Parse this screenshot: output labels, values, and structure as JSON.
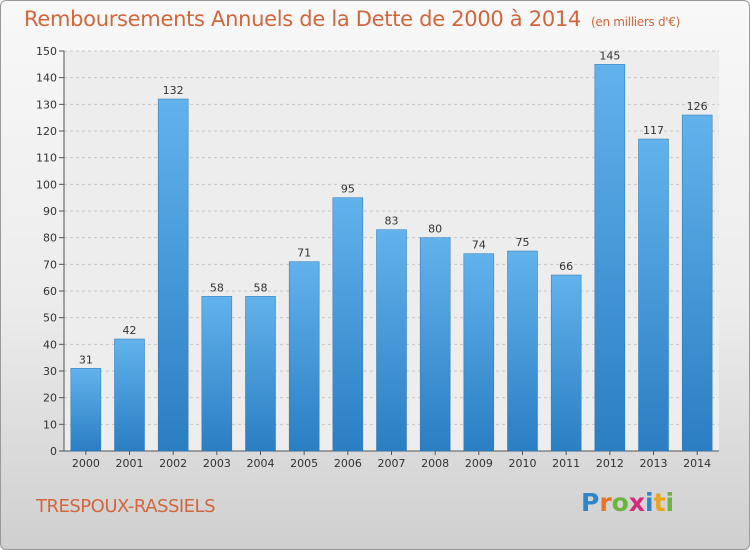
{
  "title": "Remboursements Annuels de la Dette de 2000 à 2014",
  "subtitle": "(en milliers d'€)",
  "commune": "TRESPOUX-RASSIELS",
  "logo": {
    "letters": [
      "P",
      "r",
      "o",
      "x",
      "i",
      "t",
      "i"
    ],
    "colors": [
      "#2e86c8",
      "#e8742a",
      "#6db33f",
      "#d42a7b",
      "#2e86c8",
      "#e8a51e",
      "#6db33f"
    ]
  },
  "colors": {
    "bar_light": "#62b2ec",
    "bar_dark": "#2a7ec2",
    "title": "#d2663c"
  },
  "chart_data": {
    "type": "bar",
    "title": "Remboursements Annuels de la Dette de 2000 à 2014",
    "subtitle": "(en milliers d'€)",
    "categories": [
      "2000",
      "2001",
      "2002",
      "2003",
      "2004",
      "2005",
      "2006",
      "2007",
      "2008",
      "2009",
      "2010",
      "2011",
      "2012",
      "2013",
      "2014"
    ],
    "values": [
      31,
      42,
      132,
      58,
      58,
      71,
      95,
      83,
      80,
      74,
      75,
      66,
      145,
      117,
      126
    ],
    "ylim": [
      0,
      150
    ],
    "yticks": [
      0,
      10,
      20,
      30,
      40,
      50,
      60,
      70,
      80,
      90,
      100,
      110,
      120,
      130,
      140,
      150
    ],
    "grid": true,
    "data_labels": true
  }
}
